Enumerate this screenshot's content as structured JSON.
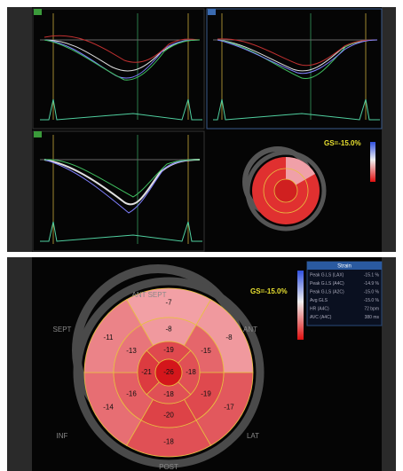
{
  "top": {
    "gs": "GS=-15.0%"
  },
  "bottom": {
    "gs": "GS=-15.0%",
    "orientation": [
      "ANT SEPT",
      "SEPT",
      "ANT",
      "INF",
      "LAT",
      "POST"
    ],
    "basal": [
      -7,
      -8,
      -17,
      -18,
      -14,
      -11
    ],
    "mid": [
      -8,
      -15,
      -19,
      -20,
      -16,
      -13
    ],
    "apical": [
      -19,
      -18,
      -18,
      -21
    ],
    "apex": -26,
    "table": {
      "header": "Strain",
      "rows": [
        [
          "Peak G.LS (LAX)",
          "-15.1 %"
        ],
        [
          "Peak G.LS (A4C)",
          "-14.9 %"
        ],
        [
          "Peak G.LS (A2C)",
          "-15.0 %"
        ],
        [
          "Avg GLS",
          "-15.0 %"
        ],
        [
          "HR (A4C)",
          "72 bpm"
        ],
        [
          "AVC (A4C)",
          "380 ms"
        ]
      ]
    }
  }
}
